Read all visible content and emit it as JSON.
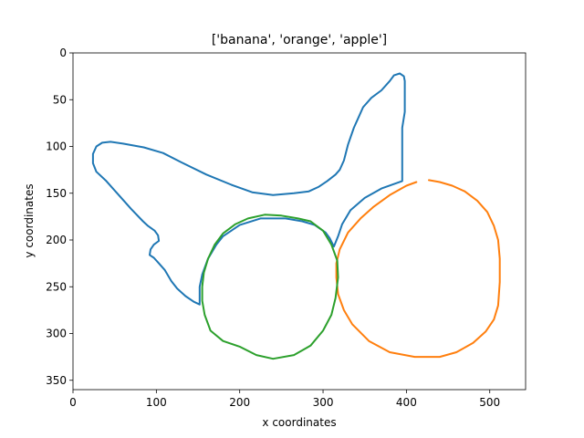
{
  "chart_data": {
    "type": "line",
    "title": "['banana', 'orange', 'apple']",
    "xlabel": "x coordinates",
    "ylabel": "y coordinates",
    "xlim": [
      0,
      543
    ],
    "ylim": [
      360,
      0
    ],
    "y_inverted": true,
    "grid": false,
    "xticks": [
      0,
      100,
      200,
      300,
      400,
      500
    ],
    "yticks": [
      0,
      50,
      100,
      150,
      200,
      250,
      300,
      350
    ],
    "series": [
      {
        "name": "banana",
        "color": "#1f77b4",
        "closed": true,
        "points": [
          [
            395,
            137
          ],
          [
            395,
            105
          ],
          [
            395,
            80
          ],
          [
            398,
            63
          ],
          [
            398,
            50
          ],
          [
            398,
            30
          ],
          [
            397,
            25
          ],
          [
            392,
            22
          ],
          [
            385,
            24
          ],
          [
            380,
            30
          ],
          [
            370,
            40
          ],
          [
            358,
            48
          ],
          [
            348,
            58
          ],
          [
            342,
            70
          ],
          [
            337,
            80
          ],
          [
            330,
            98
          ],
          [
            325,
            115
          ],
          [
            320,
            125
          ],
          [
            315,
            130
          ],
          [
            305,
            137
          ],
          [
            295,
            143
          ],
          [
            283,
            148
          ],
          [
            265,
            150
          ],
          [
            240,
            152
          ],
          [
            215,
            149
          ],
          [
            190,
            141
          ],
          [
            160,
            130
          ],
          [
            130,
            117
          ],
          [
            108,
            107
          ],
          [
            85,
            101
          ],
          [
            60,
            97
          ],
          [
            45,
            95
          ],
          [
            35,
            96
          ],
          [
            28,
            100
          ],
          [
            24,
            108
          ],
          [
            24,
            118
          ],
          [
            28,
            127
          ],
          [
            40,
            137
          ],
          [
            55,
            152
          ],
          [
            70,
            167
          ],
          [
            84,
            180
          ],
          [
            90,
            185
          ],
          [
            98,
            190
          ],
          [
            102,
            195
          ],
          [
            103,
            201
          ],
          [
            97,
            205
          ],
          [
            93,
            210
          ],
          [
            92,
            216
          ],
          [
            97,
            219
          ],
          [
            103,
            225
          ],
          [
            110,
            232
          ],
          [
            118,
            244
          ],
          [
            125,
            252
          ],
          [
            135,
            260
          ],
          [
            145,
            266
          ],
          [
            152,
            269
          ],
          [
            152,
            250
          ],
          [
            155,
            237
          ],
          [
            162,
            220
          ],
          [
            172,
            205
          ],
          [
            180,
            196
          ],
          [
            200,
            184
          ],
          [
            225,
            177
          ],
          [
            255,
            177
          ],
          [
            275,
            180
          ],
          [
            290,
            184
          ],
          [
            303,
            192
          ],
          [
            308,
            198
          ],
          [
            313,
            207
          ],
          [
            318,
            196
          ],
          [
            323,
            183
          ],
          [
            333,
            168
          ],
          [
            350,
            155
          ],
          [
            370,
            145
          ],
          [
            395,
            137
          ]
        ]
      },
      {
        "name": "orange",
        "color": "#ff7f0e",
        "closed": false,
        "points": [
          [
            427,
            136
          ],
          [
            440,
            138
          ],
          [
            455,
            142
          ],
          [
            470,
            148
          ],
          [
            485,
            158
          ],
          [
            497,
            170
          ],
          [
            505,
            185
          ],
          [
            510,
            200
          ],
          [
            512,
            220
          ],
          [
            512,
            245
          ],
          [
            510,
            270
          ],
          [
            505,
            285
          ],
          [
            495,
            298
          ],
          [
            480,
            310
          ],
          [
            460,
            320
          ],
          [
            440,
            325
          ],
          [
            410,
            325
          ],
          [
            380,
            320
          ],
          [
            355,
            308
          ],
          [
            335,
            290
          ],
          [
            325,
            275
          ],
          [
            318,
            258
          ],
          [
            316,
            240
          ],
          [
            316,
            225
          ],
          [
            320,
            210
          ],
          [
            330,
            192
          ],
          [
            345,
            177
          ],
          [
            360,
            165
          ],
          [
            380,
            152
          ],
          [
            400,
            142
          ],
          [
            412,
            138
          ]
        ]
      },
      {
        "name": "apple",
        "color": "#2ca02c",
        "closed": true,
        "points": [
          [
            230,
            173
          ],
          [
            250,
            174
          ],
          [
            270,
            177
          ],
          [
            285,
            180
          ],
          [
            300,
            190
          ],
          [
            310,
            205
          ],
          [
            317,
            222
          ],
          [
            318,
            240
          ],
          [
            315,
            262
          ],
          [
            310,
            280
          ],
          [
            300,
            297
          ],
          [
            285,
            313
          ],
          [
            265,
            323
          ],
          [
            240,
            327
          ],
          [
            220,
            323
          ],
          [
            200,
            314
          ],
          [
            180,
            308
          ],
          [
            165,
            297
          ],
          [
            158,
            280
          ],
          [
            155,
            265
          ],
          [
            155,
            250
          ],
          [
            157,
            235
          ],
          [
            162,
            220
          ],
          [
            170,
            205
          ],
          [
            180,
            193
          ],
          [
            195,
            183
          ],
          [
            210,
            177
          ],
          [
            230,
            173
          ]
        ]
      }
    ]
  }
}
